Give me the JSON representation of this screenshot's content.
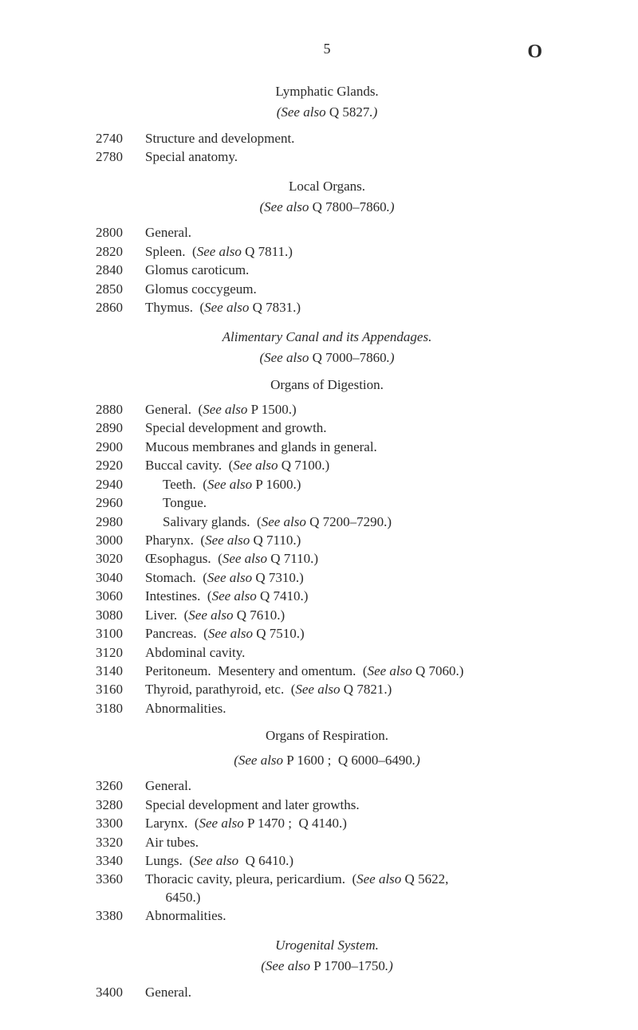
{
  "header": {
    "page_number": "5",
    "letter": "O"
  },
  "sections": [
    {
      "title": "Lymphatic Glands.",
      "ref": "(See also Q 5827.)",
      "entries": [
        {
          "code": "2740",
          "text": "Structure and development."
        },
        {
          "code": "2780",
          "text": "Special anatomy."
        }
      ]
    },
    {
      "title": "Local Organs.",
      "ref": "(See also Q 7800–7860.)",
      "entries": [
        {
          "code": "2800",
          "text": "General."
        },
        {
          "code": "2820",
          "text": "Spleen.  (See also Q 7811.)"
        },
        {
          "code": "2840",
          "text": "Glomus caroticum."
        },
        {
          "code": "2850",
          "text": "Glomus coccygeum."
        },
        {
          "code": "2860",
          "text": "Thymus.  (See also Q 7831.)"
        }
      ]
    },
    {
      "title_ital": "Alimentary Canal and its Appendages.",
      "ref": "(See also Q 7000–7860.)",
      "heading": "Organs of Digestion.",
      "entries": [
        {
          "code": "2880",
          "text": "General.  (See also P 1500.)"
        },
        {
          "code": "2890",
          "text": "Special development and growth."
        },
        {
          "code": "2900",
          "text": "Mucous membranes and glands in general."
        },
        {
          "code": "2920",
          "text": "Buccal cavity.  (See also Q 7100.)"
        },
        {
          "code": "2940",
          "text": "Teeth.  (See also P 1600.)",
          "indent": true
        },
        {
          "code": "2960",
          "text": "Tongue.",
          "indent": true
        },
        {
          "code": "2980",
          "text": "Salivary glands.  (See also Q 7200–7290.)",
          "indent": true
        },
        {
          "code": "3000",
          "text": "Pharynx.  (See also Q 7110.)"
        },
        {
          "code": "3020",
          "text": "Œsophagus.  (See also Q 7110.)"
        },
        {
          "code": "3040",
          "text": "Stomach.  (See also Q 7310.)"
        },
        {
          "code": "3060",
          "text": "Intestines.  (See also Q 7410.)"
        },
        {
          "code": "3080",
          "text": "Liver.  (See also Q 7610.)"
        },
        {
          "code": "3100",
          "text": "Pancreas.  (See also Q 7510.)"
        },
        {
          "code": "3120",
          "text": "Abdominal cavity."
        },
        {
          "code": "3140",
          "text": "Peritoneum.  Mesentery and omentum.  (See also Q 7060.)"
        },
        {
          "code": "3160",
          "text": "Thyroid, parathyroid, etc.  (See also Q 7821.)"
        },
        {
          "code": "3180",
          "text": "Abnormalities."
        }
      ]
    },
    {
      "heading": "Organs of Respiration.",
      "ref": "(See also P 1600 ;  Q 6000–6490.)",
      "entries": [
        {
          "code": "3260",
          "text": "General."
        },
        {
          "code": "3280",
          "text": "Special development and later growths."
        },
        {
          "code": "3300",
          "text": "Larynx.  (See also P 1470 ;  Q 4140.)"
        },
        {
          "code": "3320",
          "text": "Air tubes."
        },
        {
          "code": "3340",
          "text": "Lungs.  (See also  Q 6410.)"
        },
        {
          "code": "3360",
          "text": "Thoracic cavity, pleura, pericardium.  (See also Q 5622, 6450.)"
        },
        {
          "code": "3380",
          "text": "Abnormalities."
        }
      ]
    },
    {
      "title_ital": "Urogenital System.",
      "ref": "(See also P 1700–1750.)",
      "entries": [
        {
          "code": "3400",
          "text": "General."
        }
      ]
    }
  ]
}
